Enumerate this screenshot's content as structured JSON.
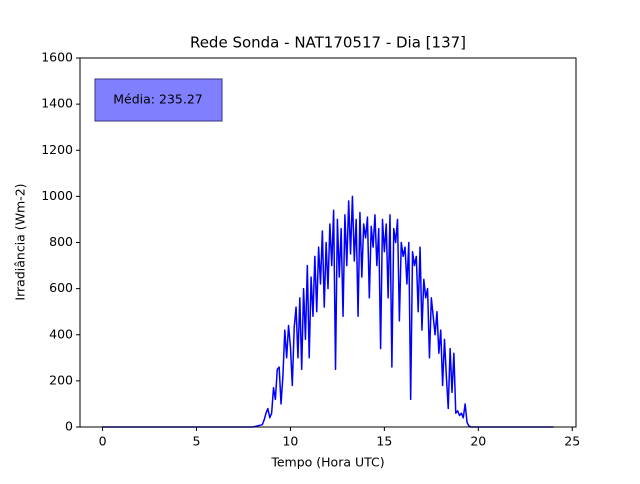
{
  "chart_data": {
    "type": "line",
    "title": "Rede Sonda - NAT170517 - Dia [137]",
    "x_label": "Tempo (Hora UTC)",
    "y_label": "Irradiância (Wm-2)",
    "annotation": "Média: 235.27",
    "xlim": [
      -1.2,
      25.2
    ],
    "ylim": [
      0,
      1600
    ],
    "xticks": [
      0,
      5,
      10,
      15,
      20,
      25
    ],
    "yticks": [
      0,
      200,
      400,
      600,
      800,
      1000,
      1200,
      1400,
      1600
    ],
    "series": [
      {
        "name": "Irradiância",
        "color": "#0000ff",
        "x": [
          0,
          8,
          8.5,
          8.6,
          8.7,
          8.8,
          8.9,
          9.0,
          9.1,
          9.2,
          9.3,
          9.4,
          9.5,
          9.6,
          9.7,
          9.8,
          9.9,
          10.0,
          10.1,
          10.2,
          10.3,
          10.4,
          10.5,
          10.6,
          10.7,
          10.8,
          10.9,
          11.0,
          11.1,
          11.2,
          11.3,
          11.4,
          11.5,
          11.6,
          11.7,
          11.8,
          11.9,
          12.0,
          12.1,
          12.2,
          12.3,
          12.4,
          12.5,
          12.6,
          12.7,
          12.8,
          12.9,
          13.0,
          13.1,
          13.2,
          13.3,
          13.4,
          13.5,
          13.6,
          13.7,
          13.8,
          13.9,
          14.0,
          14.1,
          14.2,
          14.3,
          14.4,
          14.5,
          14.6,
          14.7,
          14.8,
          14.9,
          15.0,
          15.1,
          15.2,
          15.3,
          15.4,
          15.5,
          15.6,
          15.7,
          15.8,
          15.9,
          16.0,
          16.1,
          16.2,
          16.3,
          16.4,
          16.5,
          16.6,
          16.7,
          16.8,
          16.9,
          17.0,
          17.1,
          17.2,
          17.3,
          17.4,
          17.5,
          17.6,
          17.7,
          17.8,
          17.9,
          18.0,
          18.1,
          18.2,
          18.3,
          18.4,
          18.5,
          18.6,
          18.7,
          18.8,
          18.9,
          19.0,
          19.1,
          19.2,
          19.3,
          19.4,
          19.5,
          19.6,
          20,
          24
        ],
        "values": [
          0,
          0,
          10,
          30,
          60,
          80,
          40,
          60,
          170,
          120,
          250,
          260,
          100,
          220,
          420,
          300,
          440,
          350,
          180,
          430,
          520,
          300,
          560,
          250,
          600,
          380,
          700,
          300,
          650,
          480,
          740,
          500,
          780,
          620,
          850,
          520,
          800,
          600,
          880,
          700,
          940,
          250,
          900,
          650,
          860,
          480,
          920,
          700,
          980,
          750,
          1000,
          720,
          900,
          480,
          930,
          650,
          880,
          820,
          910,
          560,
          870,
          780,
          920,
          700,
          860,
          340,
          900,
          760,
          880,
          560,
          920,
          260,
          860,
          800,
          900,
          460,
          800,
          740,
          780,
          620,
          800,
          120,
          760,
          700,
          740,
          500,
          780,
          420,
          640,
          560,
          600,
          300,
          560,
          480,
          400,
          500,
          320,
          420,
          180,
          380,
          220,
          80,
          340,
          150,
          320,
          60,
          70,
          50,
          60,
          40,
          100,
          20,
          5,
          0,
          0,
          0
        ]
      }
    ]
  }
}
